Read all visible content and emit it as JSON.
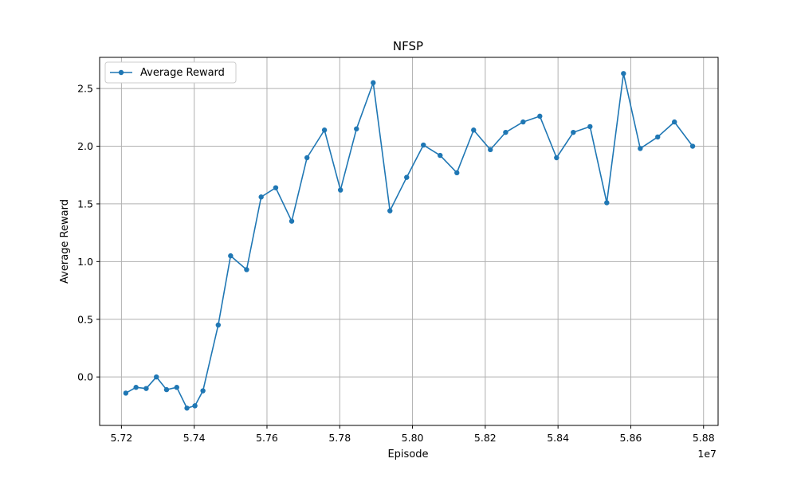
{
  "chart_data": {
    "type": "line",
    "title": "NFSP",
    "xlabel": "Episode",
    "ylabel": "Average Reward",
    "x_offset_label": "1e7",
    "xlim": [
      5.714,
      5.884
    ],
    "ylim": [
      -0.42,
      2.77
    ],
    "xticks": [
      5.72,
      5.74,
      5.76,
      5.78,
      5.8,
      5.82,
      5.84,
      5.86,
      5.88
    ],
    "xtick_labels": [
      "5.72",
      "5.74",
      "5.76",
      "5.78",
      "5.80",
      "5.82",
      "5.84",
      "5.86",
      "5.88"
    ],
    "yticks": [
      0.0,
      0.5,
      1.0,
      1.5,
      2.0,
      2.5
    ],
    "ytick_labels": [
      "0.0",
      "0.5",
      "1.0",
      "1.5",
      "2.0",
      "2.5"
    ],
    "grid": true,
    "legend_position": "top-left",
    "series": [
      {
        "name": "Average Reward",
        "color": "#1f77b4",
        "marker": "circle",
        "x": [
          5.7212,
          5.724,
          5.7268,
          5.7296,
          5.7324,
          5.7352,
          5.738,
          5.7402,
          5.7424,
          5.7466,
          5.75,
          5.7544,
          5.7584,
          5.7624,
          5.7668,
          5.771,
          5.7758,
          5.7802,
          5.7846,
          5.7892,
          5.7938,
          5.7984,
          5.803,
          5.8076,
          5.8122,
          5.8168,
          5.8214,
          5.8256,
          5.8304,
          5.835,
          5.8396,
          5.8442,
          5.8488,
          5.8534,
          5.858,
          5.8626,
          5.8674,
          5.872,
          5.877
        ],
        "y": [
          -0.14,
          -0.09,
          -0.1,
          0.0,
          -0.11,
          -0.09,
          -0.27,
          -0.25,
          -0.12,
          0.45,
          1.05,
          0.93,
          1.56,
          1.64,
          1.35,
          1.9,
          2.14,
          1.62,
          2.15,
          2.55,
          1.44,
          1.73,
          2.01,
          1.92,
          1.77,
          2.14,
          1.97,
          2.12,
          2.21,
          2.26,
          1.9,
          2.12,
          2.17,
          1.51,
          2.63,
          1.98,
          2.08,
          2.21,
          2.0
        ]
      }
    ]
  }
}
